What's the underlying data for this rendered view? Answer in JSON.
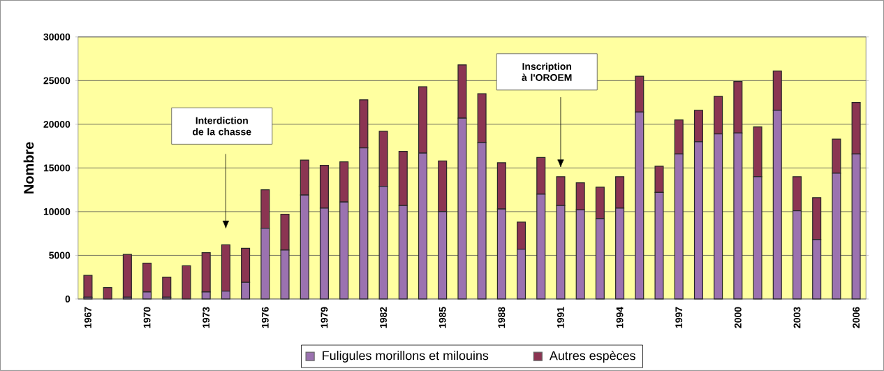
{
  "chart_data": {
    "type": "bar",
    "stacked": true,
    "ylabel": "Nombre",
    "categories": [
      "1967",
      null,
      null,
      "1970",
      null,
      null,
      "1973",
      null,
      null,
      "1976",
      null,
      null,
      "1979",
      null,
      null,
      "1982",
      null,
      null,
      "1985",
      null,
      null,
      "1988",
      null,
      null,
      "1991",
      null,
      null,
      "1994",
      null,
      null,
      "1997",
      null,
      null,
      "2000",
      null,
      null,
      "2003",
      null,
      null,
      "2006"
    ],
    "series": [
      {
        "name": "Fuligules morillons et milouins",
        "color": "#9b72b0",
        "values": [
          200,
          0,
          200,
          800,
          200,
          0,
          800,
          900,
          1900,
          8100,
          5600,
          11900,
          10400,
          11100,
          17300,
          12900,
          10700,
          16700,
          10000,
          20700,
          17900,
          10300,
          5700,
          12000,
          10700,
          10200,
          9200,
          10400,
          21400,
          12200,
          16600,
          18000,
          18900,
          19000,
          14000,
          21600,
          10100,
          6800,
          14400,
          16600
        ]
      },
      {
        "name": "Autres espèces",
        "color": "#8b3552",
        "values": [
          2500,
          1300,
          4900,
          3300,
          2300,
          3800,
          4500,
          5300,
          3900,
          4400,
          4100,
          4000,
          4900,
          4600,
          5500,
          6300,
          6200,
          7600,
          5800,
          6100,
          5600,
          5300,
          3100,
          4200,
          3300,
          3100,
          3600,
          3600,
          4100,
          3000,
          3900,
          3600,
          4300,
          5900,
          5700,
          4500,
          3900,
          4800,
          3900,
          5900
        ]
      }
    ],
    "ylim": [
      0,
      30000
    ],
    "yticks": [
      0,
      5000,
      10000,
      15000,
      20000,
      25000,
      30000
    ],
    "grid": "y",
    "legend": "bottom",
    "annotations": [
      "Interdiction de la chasse",
      "Inscription à l'OROEM"
    ]
  }
}
